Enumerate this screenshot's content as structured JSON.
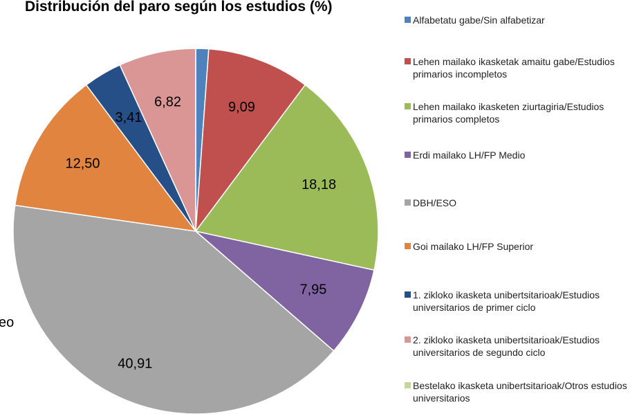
{
  "chart_data": {
    "type": "pie",
    "title": "Distribución del paro según los estudios (%)",
    "annotation": "eo",
    "categories": [
      "Alfabetatu gabe/Sin alfabetizar",
      "Lehen mailako ikasketak amaitu gabe/Estudios primarios incompletos",
      "Lehen mailako ikasketen ziurtagiria/Estudios primarios completos",
      "Erdi mailako LH/FP Medio",
      "DBH/ESO",
      "Goi mailako LH/FP Superior",
      "1. zikloko ikasketa unibertsitarioak/Estudios universitarios de primer ciclo",
      "2. zikloko ikasketa unibertsitarioak/Estudios universitarios de segundo ciclo",
      "Bestelako ikasketa unibertsitarioak/Otros estudios universitarios"
    ],
    "values": [
      1.14,
      9.09,
      18.18,
      7.95,
      40.91,
      12.5,
      3.41,
      6.82,
      0
    ],
    "value_labels": [
      null,
      "9,09",
      "18,18",
      "7,95",
      "40,91",
      "12,50",
      "3,41",
      "6,82",
      null
    ],
    "colors": [
      "#4f81bd",
      "#c0504d",
      "#9bbb59",
      "#8064a2",
      "#a5a5a5",
      "#e0843f",
      "#254f86",
      "#d99694",
      "#c3d69b"
    ],
    "legend": "right"
  }
}
